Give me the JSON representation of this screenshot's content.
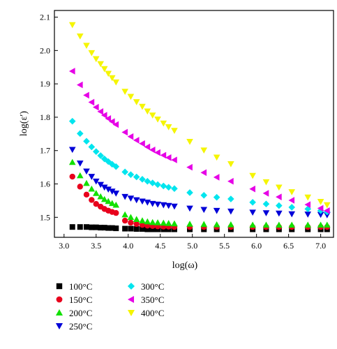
{
  "chart_data": {
    "type": "scatter",
    "xlabel": "log(ω)",
    "ylabel": "log(ε′)",
    "xlim": [
      2.85,
      7.2
    ],
    "ylim": [
      1.44,
      2.12
    ],
    "x_ticks": [
      "3.0",
      "3.5",
      "4.0",
      "4.5",
      "5.0",
      "5.5",
      "6.0",
      "6.5",
      "7.0"
    ],
    "y_ticks": [
      "1.5",
      "1.6",
      "1.7",
      "1.8",
      "1.9",
      "2.0",
      "2.1"
    ],
    "x_tick_values": [
      3.0,
      3.5,
      4.0,
      4.5,
      5.0,
      5.5,
      6.0,
      6.5,
      7.0
    ],
    "y_tick_values": [
      1.5,
      1.6,
      1.7,
      1.8,
      1.9,
      2.0,
      2.1
    ],
    "grid": false,
    "legend_position": "below",
    "series": [
      {
        "name": "100°C",
        "marker": "square",
        "color": "#000000",
        "x": [
          3.13,
          3.25,
          3.35,
          3.43,
          3.5,
          3.57,
          3.63,
          3.69,
          3.75,
          3.81,
          3.95,
          4.04,
          4.13,
          4.22,
          4.3,
          4.38,
          4.46,
          4.55,
          4.63,
          4.72,
          4.96,
          5.18,
          5.38,
          5.6,
          5.94,
          6.15,
          6.35,
          6.55,
          6.8,
          7.0,
          7.1
        ],
        "y": [
          1.471,
          1.471,
          1.471,
          1.47,
          1.47,
          1.469,
          1.469,
          1.468,
          1.468,
          1.467,
          1.466,
          1.466,
          1.465,
          1.465,
          1.464,
          1.464,
          1.464,
          1.464,
          1.464,
          1.464,
          1.464,
          1.464,
          1.464,
          1.464,
          1.464,
          1.464,
          1.464,
          1.464,
          1.464,
          1.464,
          1.464
        ]
      },
      {
        "name": "150°C",
        "marker": "circle",
        "color": "#e8001c",
        "x": [
          3.13,
          3.25,
          3.35,
          3.43,
          3.5,
          3.57,
          3.63,
          3.69,
          3.75,
          3.81,
          3.95,
          4.04,
          4.13,
          4.22,
          4.3,
          4.38,
          4.46,
          4.55,
          4.63,
          4.72,
          4.96,
          5.18,
          5.38,
          5.6,
          5.94,
          6.15,
          6.35,
          6.55,
          6.8,
          7.0,
          7.1
        ],
        "y": [
          1.622,
          1.592,
          1.568,
          1.552,
          1.54,
          1.532,
          1.525,
          1.52,
          1.516,
          1.513,
          1.49,
          1.484,
          1.48,
          1.477,
          1.475,
          1.474,
          1.473,
          1.472,
          1.472,
          1.471,
          1.471,
          1.471,
          1.471,
          1.471,
          1.471,
          1.471,
          1.471,
          1.471,
          1.471,
          1.471,
          1.471
        ]
      },
      {
        "name": "200°C",
        "marker": "triangle-up",
        "color": "#12e000",
        "x": [
          3.13,
          3.25,
          3.35,
          3.43,
          3.5,
          3.57,
          3.63,
          3.69,
          3.75,
          3.81,
          3.95,
          4.04,
          4.13,
          4.22,
          4.3,
          4.38,
          4.46,
          4.55,
          4.63,
          4.72,
          4.96,
          5.18,
          5.38,
          5.6,
          5.94,
          6.15,
          6.35,
          6.55,
          6.8,
          7.0,
          7.1
        ],
        "y": [
          1.665,
          1.625,
          1.602,
          1.585,
          1.572,
          1.562,
          1.554,
          1.548,
          1.542,
          1.537,
          1.508,
          1.5,
          1.494,
          1.49,
          1.487,
          1.485,
          1.484,
          1.483,
          1.482,
          1.481,
          1.48,
          1.479,
          1.478,
          1.478,
          1.477,
          1.477,
          1.477,
          1.477,
          1.477,
          1.477,
          1.477
        ]
      },
      {
        "name": "250°C",
        "marker": "triangle-down",
        "color": "#0000d8",
        "x": [
          3.13,
          3.25,
          3.35,
          3.43,
          3.5,
          3.57,
          3.63,
          3.69,
          3.75,
          3.81,
          3.95,
          4.04,
          4.13,
          4.22,
          4.3,
          4.38,
          4.46,
          4.55,
          4.63,
          4.72,
          4.96,
          5.18,
          5.38,
          5.6,
          5.94,
          6.15,
          6.35,
          6.55,
          6.8,
          7.0,
          7.1
        ],
        "y": [
          1.703,
          1.662,
          1.638,
          1.622,
          1.608,
          1.598,
          1.59,
          1.584,
          1.578,
          1.572,
          1.562,
          1.557,
          1.552,
          1.548,
          1.545,
          1.541,
          1.539,
          1.537,
          1.535,
          1.533,
          1.527,
          1.523,
          1.52,
          1.518,
          1.515,
          1.513,
          1.512,
          1.51,
          1.509,
          1.508,
          1.507
        ]
      },
      {
        "name": "300°C",
        "marker": "diamond",
        "color": "#00e5ee",
        "x": [
          3.13,
          3.25,
          3.35,
          3.43,
          3.5,
          3.57,
          3.63,
          3.69,
          3.75,
          3.81,
          3.95,
          4.04,
          4.13,
          4.22,
          4.3,
          4.38,
          4.46,
          4.55,
          4.63,
          4.72,
          4.96,
          5.18,
          5.38,
          5.6,
          5.94,
          6.15,
          6.35,
          6.55,
          6.8,
          7.0,
          7.1
        ],
        "y": [
          1.788,
          1.751,
          1.728,
          1.711,
          1.697,
          1.685,
          1.675,
          1.667,
          1.659,
          1.652,
          1.636,
          1.628,
          1.621,
          1.614,
          1.608,
          1.603,
          1.598,
          1.594,
          1.59,
          1.586,
          1.574,
          1.566,
          1.56,
          1.555,
          1.545,
          1.54,
          1.535,
          1.53,
          1.525,
          1.52,
          1.516
        ]
      },
      {
        "name": "350°C",
        "marker": "triangle-left",
        "color": "#e600e6",
        "x": [
          3.13,
          3.25,
          3.35,
          3.43,
          3.5,
          3.57,
          3.63,
          3.69,
          3.75,
          3.81,
          3.95,
          4.04,
          4.13,
          4.22,
          4.3,
          4.38,
          4.46,
          4.55,
          4.63,
          4.72,
          4.96,
          5.18,
          5.38,
          5.6,
          5.94,
          6.15,
          6.35,
          6.55,
          6.8,
          7.0,
          7.1
        ],
        "y": [
          1.938,
          1.897,
          1.866,
          1.845,
          1.83,
          1.817,
          1.806,
          1.796,
          1.787,
          1.778,
          1.755,
          1.742,
          1.731,
          1.721,
          1.711,
          1.702,
          1.694,
          1.686,
          1.679,
          1.672,
          1.65,
          1.634,
          1.62,
          1.608,
          1.585,
          1.572,
          1.561,
          1.551,
          1.538,
          1.527,
          1.52
        ]
      },
      {
        "name": "400°C",
        "marker": "triangle-down",
        "color": "#f5f500",
        "x": [
          3.13,
          3.25,
          3.35,
          3.43,
          3.5,
          3.57,
          3.63,
          3.69,
          3.75,
          3.81,
          3.95,
          4.04,
          4.13,
          4.22,
          4.3,
          4.38,
          4.46,
          4.55,
          4.63,
          4.72,
          4.96,
          5.18,
          5.38,
          5.6,
          5.94,
          6.15,
          6.35,
          6.55,
          6.8,
          7.0,
          7.1
        ],
        "y": [
          2.077,
          2.043,
          2.015,
          1.993,
          1.975,
          1.96,
          1.945,
          1.931,
          1.918,
          1.905,
          1.877,
          1.862,
          1.846,
          1.832,
          1.818,
          1.806,
          1.794,
          1.782,
          1.771,
          1.76,
          1.727,
          1.701,
          1.68,
          1.66,
          1.625,
          1.606,
          1.59,
          1.576,
          1.56,
          1.547,
          1.537
        ]
      }
    ]
  }
}
